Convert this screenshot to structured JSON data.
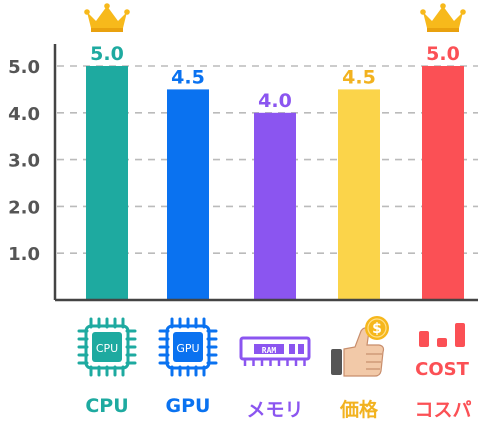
{
  "chart_data": {
    "type": "bar",
    "categories": [
      "CPU",
      "GPU",
      "メモリ",
      "価格",
      "コスパ"
    ],
    "values": [
      5.0,
      4.5,
      4.0,
      4.5,
      5.0
    ],
    "value_labels": [
      "5.0",
      "4.5",
      "4.0",
      "4.5",
      "5.0"
    ],
    "ylim": [
      0,
      5
    ],
    "yticks": [
      "1.0",
      "2.0",
      "3.0",
      "4.0",
      "5.0"
    ],
    "grid": true,
    "colors": [
      "#1eaaa0",
      "#0a72f0",
      "#8b55f0",
      "#fbd44a",
      "#fb5055"
    ],
    "label_colors": [
      "#1eaaa0",
      "#0a72f0",
      "#8b55f0",
      "#f2b21f",
      "#fb5055"
    ],
    "crowns_on": [
      "CPU",
      "コスパ"
    ],
    "icons": [
      "cpu-chip-icon",
      "gpu-chip-icon",
      "ram-stick-icon",
      "thumbs-up-coin-icon",
      "cost-bars-icon"
    ],
    "icon_texts": [
      "CPU",
      "GPU",
      "RAM",
      "$",
      "COST"
    ]
  }
}
